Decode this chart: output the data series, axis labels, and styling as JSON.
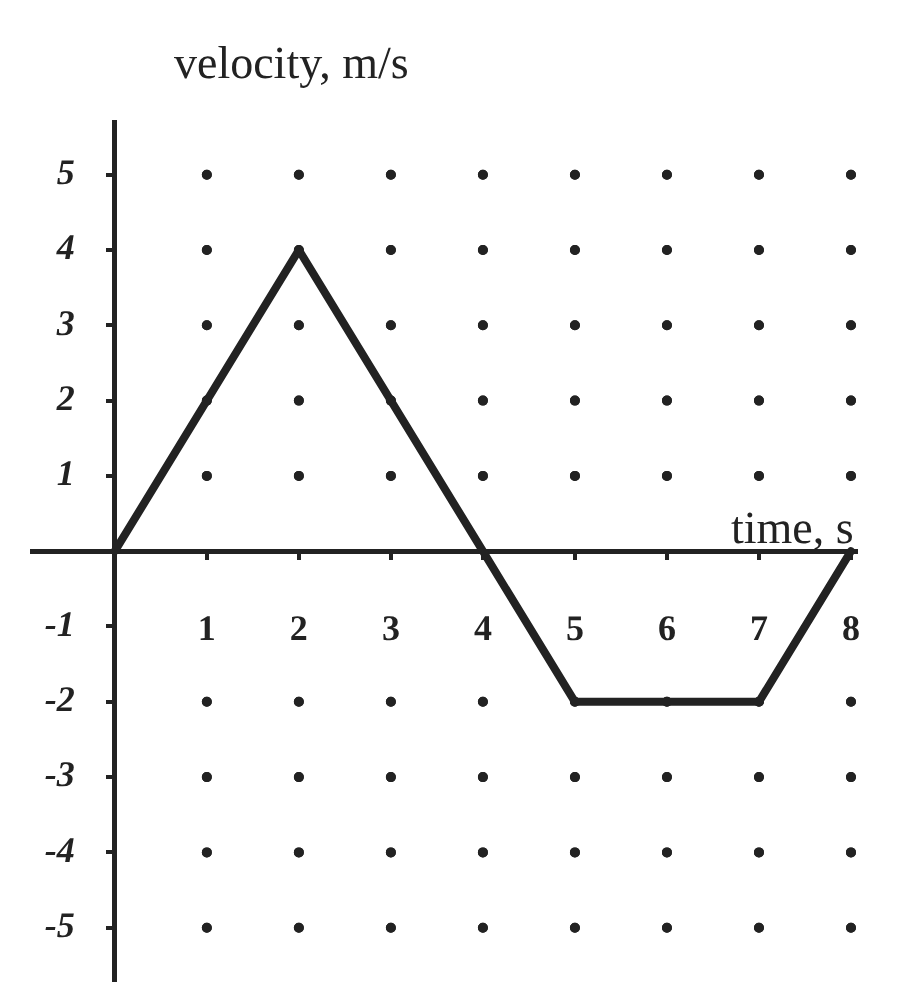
{
  "chart_data": {
    "type": "line",
    "xlabel": "time, s",
    "ylabel": "velocity, m/s",
    "x": [
      0,
      2,
      4,
      5,
      7,
      8
    ],
    "values": [
      0,
      4,
      0,
      -2,
      -2,
      0
    ],
    "color": "#222222",
    "xlim": [
      -0.9,
      8.05
    ],
    "xticks": [
      1,
      2,
      3,
      4,
      5,
      6,
      7,
      8
    ],
    "ylim": [
      -5.7,
      5.7
    ],
    "yticks": [
      -5,
      -4,
      -3,
      -2,
      -1,
      1,
      2,
      3,
      4,
      5
    ],
    "grid": true
  }
}
